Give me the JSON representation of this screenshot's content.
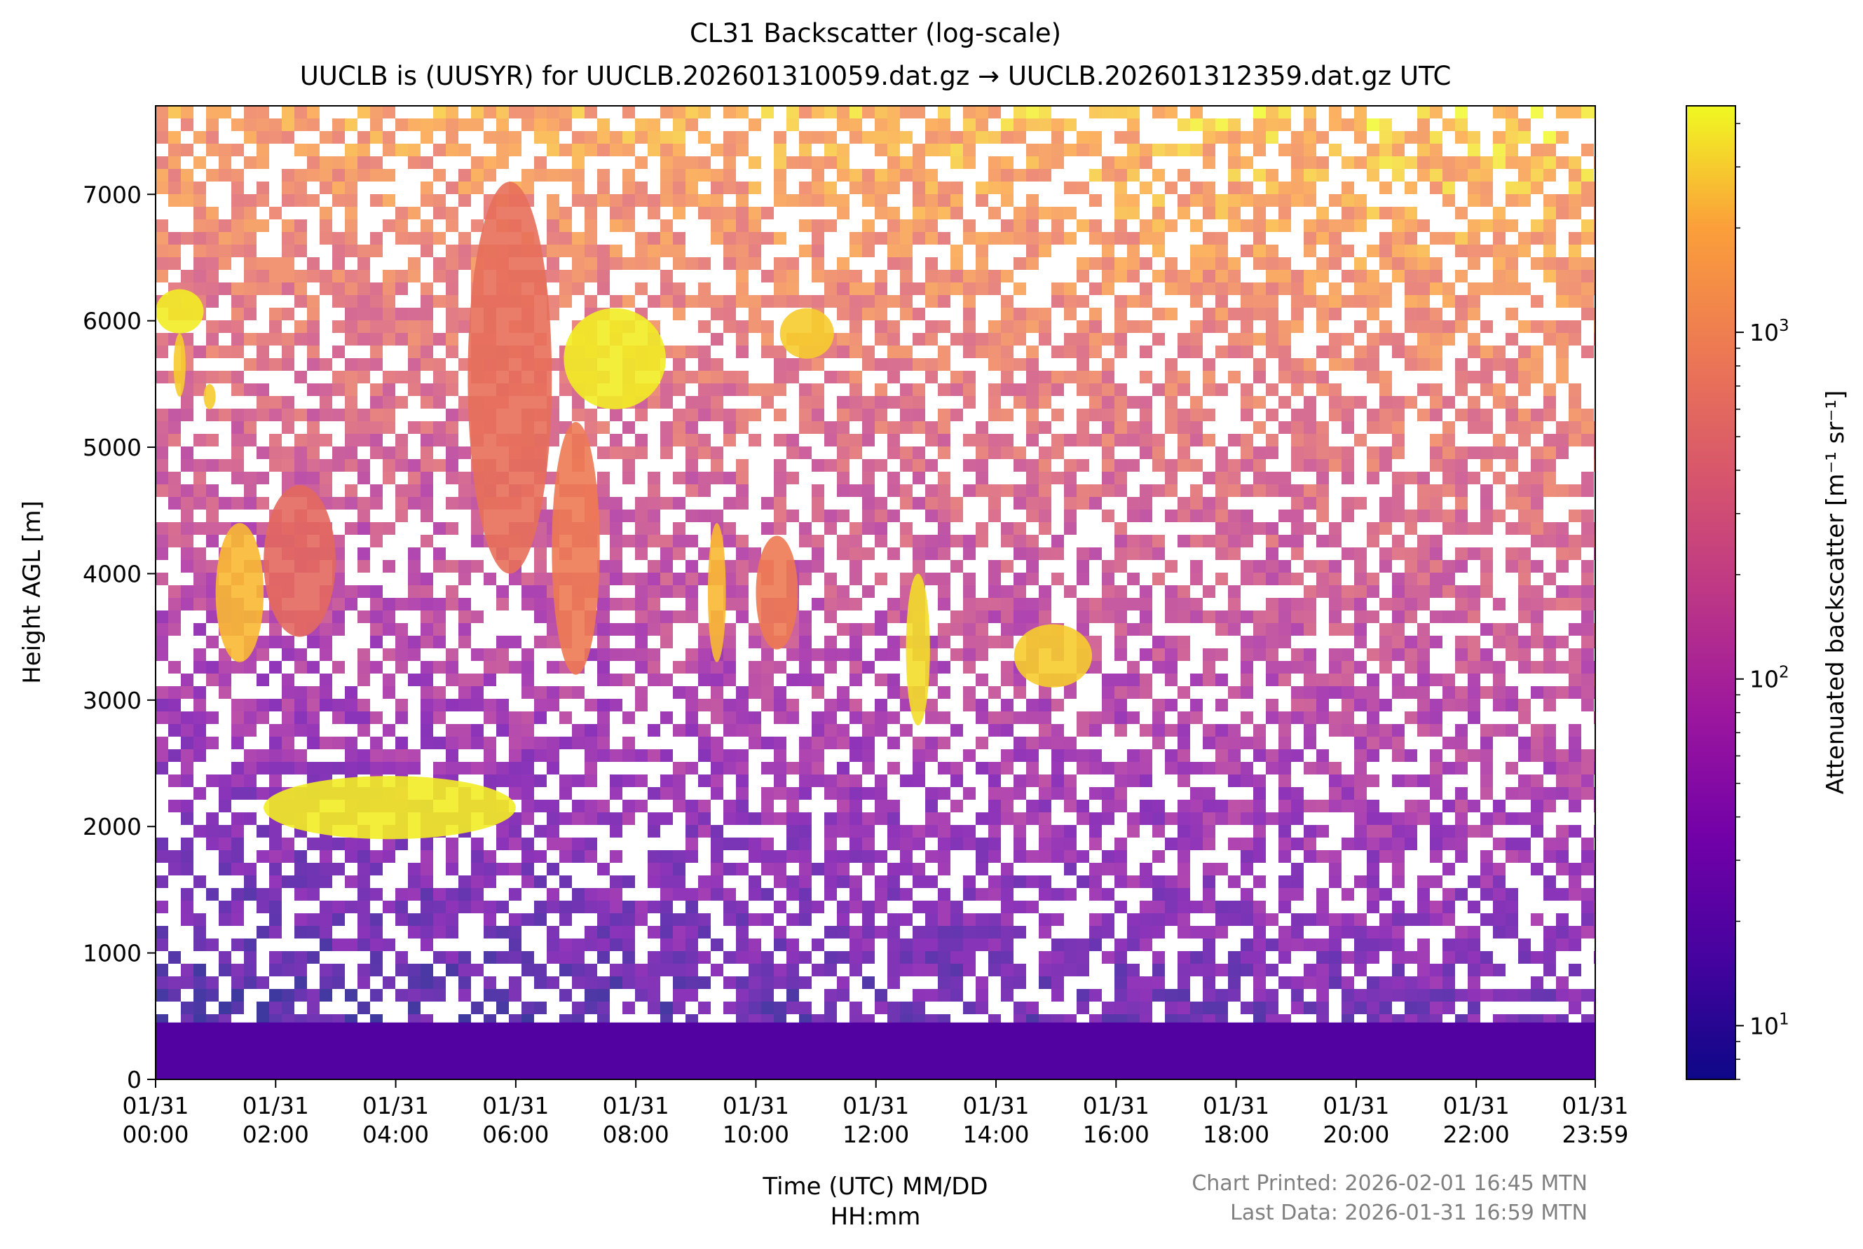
{
  "chart_data": {
    "type": "heatmap",
    "title": "CL31 Backscatter (log-scale)",
    "subtitle": "UUCLB is (UUSYR) for UUCLB.202601310059.dat.gz → UUCLB.202601312359.dat.gz UTC",
    "xlabel": [
      "Time (UTC) MM/DD",
      "HH:mm"
    ],
    "ylabel": "Height AGL [m]",
    "x_range": [
      "01/31 00:00",
      "01/31 23:59"
    ],
    "xticks": [
      {
        "date": "01/31",
        "time": "00:00",
        "hours": 0
      },
      {
        "date": "01/31",
        "time": "02:00",
        "hours": 2
      },
      {
        "date": "01/31",
        "time": "04:00",
        "hours": 4
      },
      {
        "date": "01/31",
        "time": "06:00",
        "hours": 6
      },
      {
        "date": "01/31",
        "time": "08:00",
        "hours": 8
      },
      {
        "date": "01/31",
        "time": "10:00",
        "hours": 10
      },
      {
        "date": "01/31",
        "time": "12:00",
        "hours": 12
      },
      {
        "date": "01/31",
        "time": "14:00",
        "hours": 14
      },
      {
        "date": "01/31",
        "time": "16:00",
        "hours": 16
      },
      {
        "date": "01/31",
        "time": "18:00",
        "hours": 18
      },
      {
        "date": "01/31",
        "time": "20:00",
        "hours": 20
      },
      {
        "date": "01/31",
        "time": "22:00",
        "hours": 22
      },
      {
        "date": "01/31",
        "time": "23:59",
        "hours": 23.983
      }
    ],
    "y_range": [
      0,
      7700
    ],
    "yticks": [
      0,
      1000,
      2000,
      3000,
      4000,
      5000,
      6000,
      7000
    ],
    "colorbar": {
      "label": "Attenuated backscatter [m⁻¹ sr⁻¹]",
      "scale": "log",
      "range": [
        7,
        4500
      ],
      "colormap": "plasma",
      "ticks": [
        {
          "value": 10,
          "base": "10",
          "exp": "1"
        },
        {
          "value": 100,
          "base": "10",
          "exp": "2"
        },
        {
          "value": 1000,
          "base": "10",
          "exp": "3"
        }
      ]
    },
    "grid": false,
    "features": [
      {
        "name": "surface layer",
        "t0": 0,
        "t1": 23.98,
        "h0": 0,
        "h1": 450,
        "value": 20
      },
      {
        "name": "cloud",
        "t0": 0.0,
        "t1": 0.8,
        "h0": 5900,
        "h1": 6250,
        "value": 4000
      },
      {
        "name": "cloud",
        "t0": 0.3,
        "t1": 0.5,
        "h0": 5400,
        "h1": 5900,
        "value": 3000
      },
      {
        "name": "cloud",
        "t0": 0.8,
        "t1": 1.0,
        "h0": 5300,
        "h1": 5500,
        "value": 3000
      },
      {
        "name": "cloud",
        "t0": 1.0,
        "t1": 1.8,
        "h0": 3300,
        "h1": 4400,
        "value": 2500
      },
      {
        "name": "cloud",
        "t0": 1.8,
        "t1": 3.0,
        "h0": 3500,
        "h1": 4700,
        "value": 600
      },
      {
        "name": "cloud",
        "t0": 1.8,
        "t1": 6.0,
        "h0": 1900,
        "h1": 2400,
        "value": 4000
      },
      {
        "name": "cloud",
        "t0": 5.2,
        "t1": 6.6,
        "h0": 4000,
        "h1": 7100,
        "value": 700
      },
      {
        "name": "cloud",
        "t0": 6.6,
        "t1": 7.4,
        "h0": 3200,
        "h1": 5200,
        "value": 900
      },
      {
        "name": "cloud",
        "t0": 6.8,
        "t1": 8.5,
        "h0": 5300,
        "h1": 6100,
        "value": 4000
      },
      {
        "name": "cloud",
        "t0": 9.2,
        "t1": 9.5,
        "h0": 3300,
        "h1": 4400,
        "value": 2500
      },
      {
        "name": "cloud",
        "t0": 10.0,
        "t1": 10.7,
        "h0": 3400,
        "h1": 4300,
        "value": 900
      },
      {
        "name": "cloud",
        "t0": 10.4,
        "t1": 11.3,
        "h0": 5700,
        "h1": 6100,
        "value": 3000
      },
      {
        "name": "cloud",
        "t0": 12.5,
        "t1": 12.9,
        "h0": 2800,
        "h1": 4000,
        "value": 3500
      },
      {
        "name": "cloud",
        "t0": 14.3,
        "t1": 15.6,
        "h0": 3100,
        "h1": 3600,
        "value": 3000
      }
    ]
  },
  "footer": {
    "printed": "Chart Printed: 2026-02-01 16:45 MTN",
    "last_data": "Last Data: 2026-01-31 16:59 MTN"
  }
}
